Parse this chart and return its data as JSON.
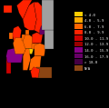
{
  "background": "#000000",
  "map_bg": "#c0c0c0",
  "legend_items": [
    {
      "color": "#ffcc00",
      "label": "< 4.0"
    },
    {
      "color": "#ffaa00",
      "label": "4.0 - 5.9"
    },
    {
      "color": "#ff6600",
      "label": "6.0 - 7.9"
    },
    {
      "color": "#ff2200",
      "label": "8.0 - 9.9"
    },
    {
      "color": "#cc0000",
      "label": "10.0 - 11.9"
    },
    {
      "color": "#990000",
      "label": "12.0 - 13.9"
    },
    {
      "color": "#880088",
      "label": "14.0 - 15.9"
    },
    {
      "color": "#660066",
      "label": "16.0 - 17.9"
    },
    {
      "color": "#440044",
      "label": "> 18.0"
    },
    {
      "color": "#8B4513",
      "label": "N/A"
    }
  ],
  "figsize": [
    1.2,
    1.19
  ],
  "dpi": 100
}
